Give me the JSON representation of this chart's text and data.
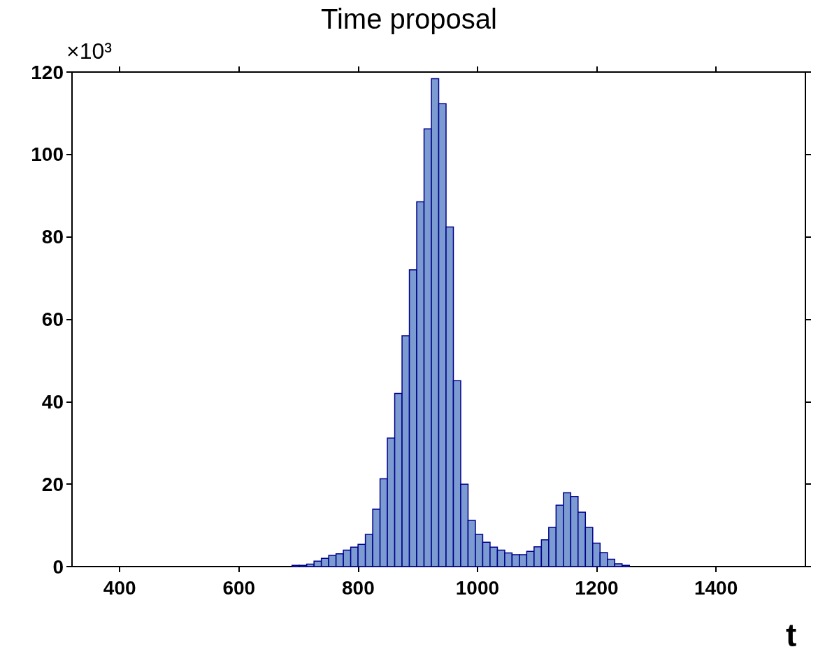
{
  "chart_data": {
    "type": "histogram",
    "title": "Time proposal",
    "xlabel": "t",
    "ylabel": "×10³",
    "color": "#7b9bd1",
    "bins": [
      689,
      701.3,
      713.6,
      725.9,
      738.2,
      750.5,
      762.8,
      775.1,
      787.4,
      799.7,
      812,
      824.3,
      836.6,
      848.9,
      861.2,
      873.5,
      885.8,
      898.1,
      910.4,
      922.7,
      935,
      947.3,
      959.6,
      971.9,
      984.2,
      996.5,
      1008.8,
      1021.1,
      1033.4,
      1045.7,
      1058,
      1070.3,
      1082.6,
      1094.9,
      1107.2,
      1119.5,
      1131.8,
      1144.1,
      1156.4,
      1168.7,
      1181,
      1193.3,
      1205.6,
      1217.9,
      1230.2,
      1242.5,
      1254.8
    ],
    "values": [
      0.3,
      0.3,
      0.6,
      1.3,
      2.0,
      2.7,
      3.1,
      4.0,
      4.7,
      5.4,
      7.8,
      13.9,
      21.3,
      31.2,
      42.0,
      56.0,
      72.0,
      88.5,
      106.2,
      118.4,
      112.3,
      82.4,
      45.1,
      20.0,
      11.2,
      7.8,
      5.9,
      4.7,
      4.0,
      3.3,
      2.9,
      2.9,
      3.7,
      4.8,
      6.5,
      9.5,
      14.9,
      17.9,
      17.0,
      13.2,
      9.5,
      5.7,
      3.4,
      1.8,
      0.7,
      0.3
    ],
    "xlim": [
      320,
      1550
    ],
    "xticks": [
      400,
      600,
      800,
      1000,
      1200,
      1400
    ],
    "ylim": [
      0,
      120
    ],
    "yticks": [
      0,
      20,
      40,
      60,
      80,
      100,
      120
    ],
    "grid": false
  }
}
